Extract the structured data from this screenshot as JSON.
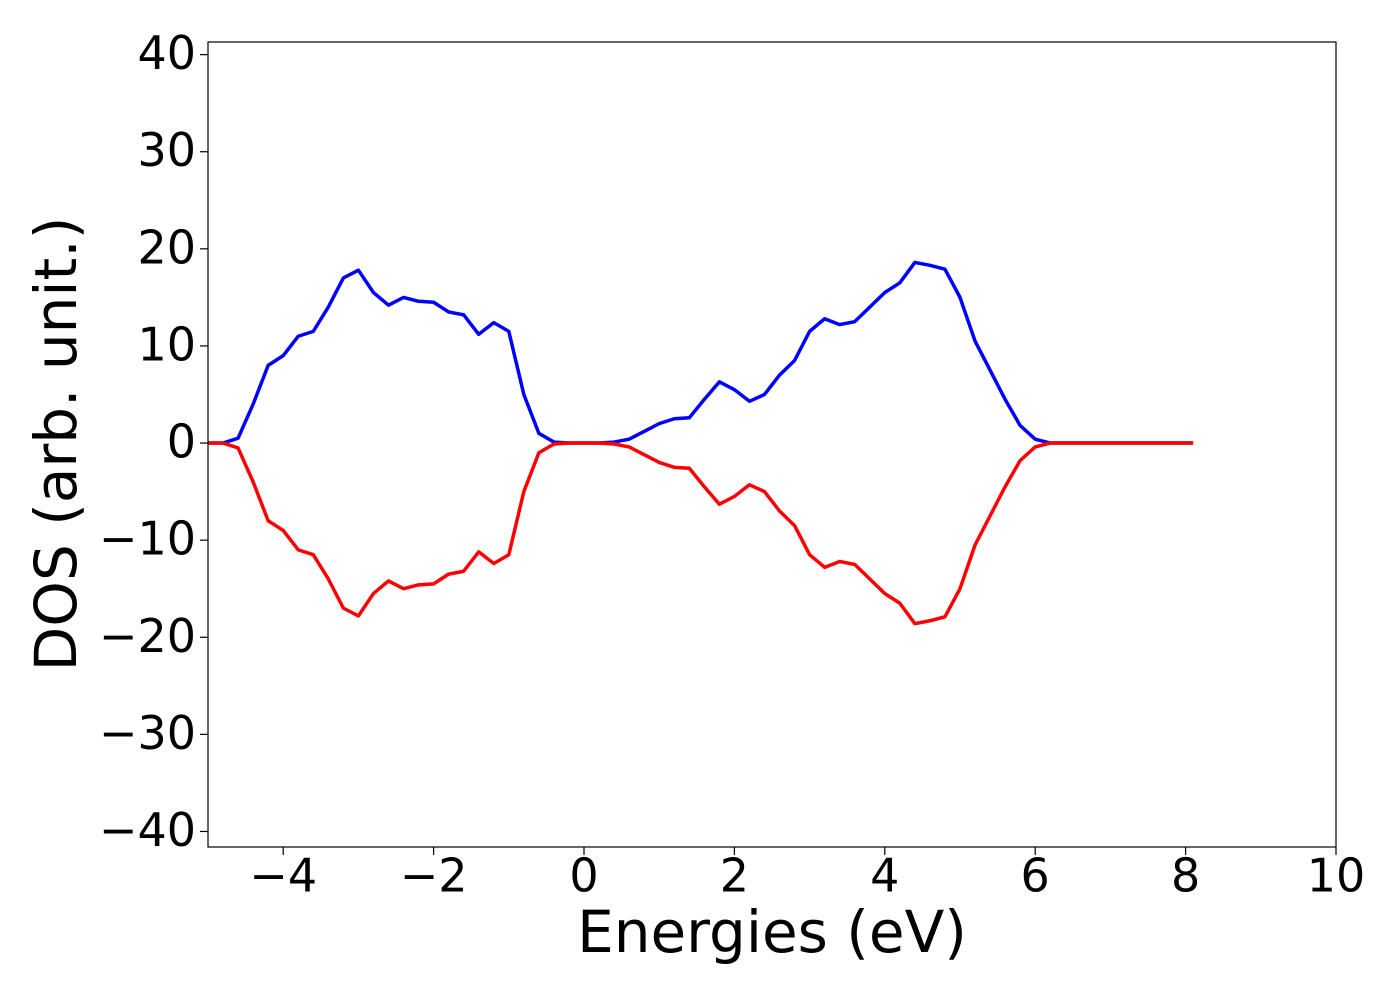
{
  "chart_data": {
    "type": "line",
    "xlabel": "Energies (eV)",
    "ylabel": "DOS (arb. unit.)",
    "x": [
      -5,
      -4.8,
      -4.6,
      -4.4,
      -4.2,
      -4,
      -3.8,
      -3.6,
      -3.4,
      -3.2,
      -3,
      -2.8,
      -2.6,
      -2.4,
      -2.2,
      -2,
      -1.8,
      -1.6,
      -1.4,
      -1.2,
      -1,
      -0.8,
      -0.6,
      -0.4,
      -0.2,
      0,
      0.2,
      0.4,
      0.6,
      0.8,
      1,
      1.2,
      1.4,
      1.6,
      1.8,
      2,
      2.2,
      2.4,
      2.6,
      2.8,
      3,
      3.2,
      3.4,
      3.6,
      3.8,
      4,
      4.2,
      4.4,
      4.6,
      4.8,
      5,
      5.2,
      5.4,
      5.6,
      5.8,
      6,
      6.2,
      6.4,
      6.6,
      6.8,
      7,
      7.2,
      7.4,
      7.6,
      7.8,
      8,
      8.1
    ],
    "series": [
      {
        "color": "#0000ff",
        "values": [
          0,
          0,
          0.5,
          4,
          8,
          9,
          11,
          11.5,
          14,
          17,
          17.8,
          15.5,
          14.2,
          15,
          14.6,
          14.5,
          13.5,
          13.2,
          11.2,
          12.4,
          11.5,
          5,
          1,
          0.1,
          0,
          0,
          0,
          0.1,
          0.4,
          1.2,
          2,
          2.5,
          2.6,
          4.5,
          6.3,
          5.5,
          4.3,
          5,
          7,
          8.5,
          11.5,
          12.8,
          12.2,
          12.5,
          14,
          15.5,
          16.5,
          18.6,
          18.3,
          17.9,
          15,
          10.5,
          7.5,
          4.5,
          1.8,
          0.4,
          0,
          0,
          0,
          0,
          0,
          0,
          0,
          0,
          0,
          0,
          0
        ]
      },
      {
        "color": "#ff0000",
        "values": [
          0,
          0,
          -0.5,
          -4,
          -8,
          -9,
          -11,
          -11.5,
          -14,
          -17,
          -17.8,
          -15.5,
          -14.2,
          -15,
          -14.6,
          -14.5,
          -13.5,
          -13.2,
          -11.2,
          -12.4,
          -11.5,
          -5,
          -1,
          -0.1,
          0,
          0,
          0,
          -0.1,
          -0.4,
          -1.2,
          -2,
          -2.5,
          -2.6,
          -4.5,
          -6.3,
          -5.5,
          -4.3,
          -5,
          -7,
          -8.5,
          -11.5,
          -12.8,
          -12.2,
          -12.5,
          -14,
          -15.5,
          -16.5,
          -18.6,
          -18.3,
          -17.9,
          -15,
          -10.5,
          -7.5,
          -4.5,
          -1.8,
          -0.4,
          0,
          0,
          0,
          0,
          0,
          0,
          0,
          0,
          0,
          0,
          0
        ]
      }
    ],
    "xlim": [
      -5,
      10
    ],
    "xticks": [
      {
        "value": -4,
        "label": "−4"
      },
      {
        "value": -2,
        "label": "−2"
      },
      0,
      2,
      4,
      6,
      8,
      10
    ],
    "ylim": [
      -41.6,
      41.3
    ],
    "yticks": [
      {
        "value": -40,
        "label": "−40"
      },
      {
        "value": -30,
        "label": "−30"
      },
      {
        "value": -20,
        "label": "−20"
      },
      {
        "value": -10,
        "label": "−10"
      },
      0,
      10,
      20,
      30,
      40
    ],
    "grid": false
  }
}
